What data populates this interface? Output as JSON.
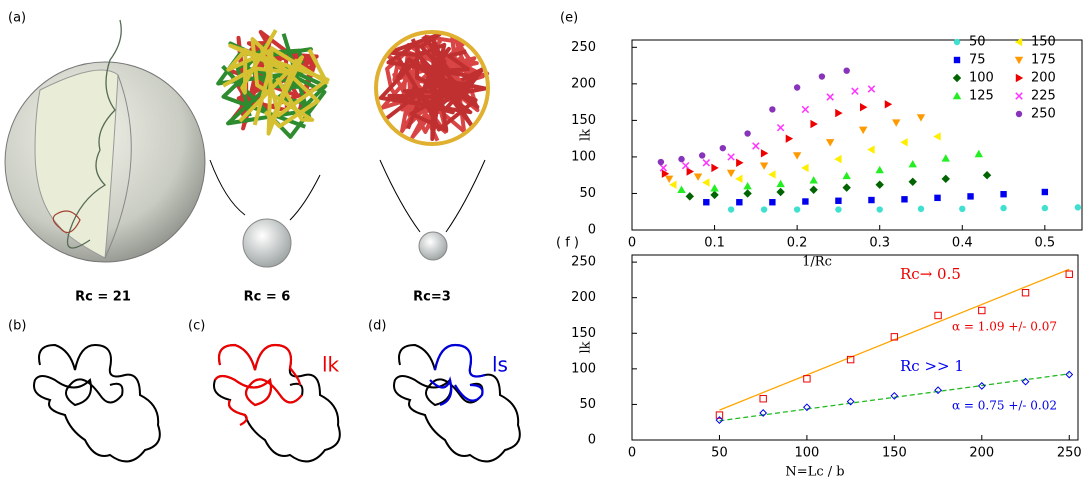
{
  "panels": {
    "a": "(a)",
    "b": "(b)",
    "c": "(c)",
    "d": "(d)",
    "rc_labels": [
      "Rc = 21",
      "Rc = 6",
      "Rc=3"
    ],
    "loop_labels": [
      "lk",
      "ls"
    ]
  },
  "chart_data": [
    {
      "type": "scatter",
      "panel": "(e)",
      "xlabel": "1/Rc",
      "ylabel": "lk",
      "xlim": [
        0,
        0.545
      ],
      "ylim": [
        0,
        260
      ],
      "xticks": [
        0,
        0.1,
        0.2,
        0.3,
        0.4,
        0.5
      ],
      "yticks": [
        0,
        50,
        100,
        150,
        200,
        250
      ],
      "legend": "upper right",
      "series": [
        {
          "name": "50",
          "color": "#40e0d0",
          "marker": "circle",
          "x": [
            0.12,
            0.16,
            0.2,
            0.25,
            0.3,
            0.35,
            0.4,
            0.45,
            0.5,
            0.54
          ],
          "values": [
            28,
            28,
            28,
            28,
            28,
            29,
            29,
            30,
            30,
            31
          ]
        },
        {
          "name": "75",
          "color": "#0000ee",
          "marker": "square",
          "x": [
            0.09,
            0.13,
            0.17,
            0.21,
            0.25,
            0.29,
            0.33,
            0.37,
            0.41,
            0.45,
            0.5
          ],
          "values": [
            38,
            38,
            38,
            39,
            40,
            41,
            42,
            44,
            46,
            49,
            52
          ]
        },
        {
          "name": "100",
          "color": "#006400",
          "marker": "diamond",
          "x": [
            0.07,
            0.1,
            0.14,
            0.18,
            0.22,
            0.26,
            0.3,
            0.34,
            0.38,
            0.43
          ],
          "values": [
            46,
            48,
            50,
            52,
            55,
            58,
            62,
            66,
            70,
            75
          ]
        },
        {
          "name": "125",
          "color": "#22ee22",
          "marker": "triangle-up",
          "x": [
            0.06,
            0.1,
            0.14,
            0.18,
            0.22,
            0.26,
            0.3,
            0.34,
            0.38,
            0.42
          ],
          "values": [
            55,
            57,
            60,
            63,
            68,
            74,
            82,
            90,
            98,
            104
          ]
        },
        {
          "name": "150",
          "color": "#ffee00",
          "marker": "triangle-left",
          "x": [
            0.05,
            0.09,
            0.13,
            0.17,
            0.21,
            0.25,
            0.29,
            0.33,
            0.37
          ],
          "values": [
            62,
            65,
            70,
            76,
            85,
            97,
            110,
            120,
            128
          ]
        },
        {
          "name": "175",
          "color": "#ff9900",
          "marker": "triangle-down",
          "x": [
            0.045,
            0.08,
            0.12,
            0.16,
            0.2,
            0.24,
            0.28,
            0.32,
            0.35
          ],
          "values": [
            70,
            73,
            78,
            88,
            102,
            120,
            137,
            147,
            154
          ]
        },
        {
          "name": "200",
          "color": "#ee0000",
          "marker": "triangle-right",
          "x": [
            0.04,
            0.07,
            0.1,
            0.13,
            0.16,
            0.19,
            0.22,
            0.25,
            0.28,
            0.31
          ],
          "values": [
            77,
            80,
            85,
            92,
            105,
            125,
            145,
            160,
            168,
            172
          ]
        },
        {
          "name": "225",
          "color": "#ff33ff",
          "marker": "x",
          "x": [
            0.038,
            0.065,
            0.09,
            0.12,
            0.15,
            0.18,
            0.21,
            0.24,
            0.27,
            0.29
          ],
          "values": [
            85,
            88,
            92,
            100,
            115,
            140,
            165,
            182,
            190,
            193
          ]
        },
        {
          "name": "250",
          "color": "#8833bb",
          "marker": "circle",
          "x": [
            0.035,
            0.06,
            0.085,
            0.11,
            0.14,
            0.17,
            0.2,
            0.23,
            0.26
          ],
          "values": [
            93,
            97,
            102,
            112,
            132,
            165,
            195,
            210,
            218
          ]
        }
      ]
    },
    {
      "type": "scatter",
      "panel": "( f )",
      "xlabel": "N=Lc / b",
      "ylabel": "lk",
      "xlim": [
        0,
        255
      ],
      "ylim": [
        0,
        260
      ],
      "xticks": [
        0,
        50,
        100,
        150,
        200,
        250
      ],
      "yticks": [
        0,
        50,
        100,
        150,
        200,
        250
      ],
      "series": [
        {
          "color": "#ee0000",
          "marker": "square-open",
          "x": [
            50,
            75,
            100,
            125,
            150,
            175,
            200,
            225,
            250
          ],
          "values": [
            35,
            58,
            86,
            113,
            145,
            175,
            182,
            207,
            233
          ]
        },
        {
          "color": "#0000ee",
          "marker": "diamond-open",
          "x": [
            50,
            75,
            100,
            125,
            150,
            175,
            200,
            225,
            250
          ],
          "values": [
            28,
            38,
            46,
            54,
            62,
            70,
            76,
            82,
            92
          ]
        }
      ],
      "fits": [
        {
          "color": "#ffa500",
          "dashed": false,
          "x": [
            50,
            250
          ],
          "values": [
            42,
            240
          ]
        },
        {
          "color": "#22bb22",
          "dashed": true,
          "x": [
            50,
            250
          ],
          "values": [
            27,
            93
          ]
        }
      ],
      "annotations": [
        {
          "text": "Rc→ 0.5",
          "color": "#ee0000"
        },
        {
          "text": "α = 1.09 +/- 0.07",
          "color": "#ee0000"
        },
        {
          "text": "Rc >> 1",
          "color": "#0000ee"
        },
        {
          "text": "α = 0.75 +/- 0.02",
          "color": "#0000ee"
        }
      ]
    }
  ]
}
